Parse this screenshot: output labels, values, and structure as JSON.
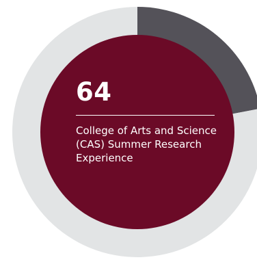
{
  "chart_data": {
    "type": "pie",
    "value_label": "64",
    "caption": "College of Arts and Science (CAS) Summer Research Experience",
    "slices": [
      {
        "value": 22,
        "color": "#545259"
      },
      {
        "value": 78,
        "color": "#e2e4e5"
      }
    ],
    "center_color": "#6b0a27",
    "start_angle_deg": 0
  }
}
